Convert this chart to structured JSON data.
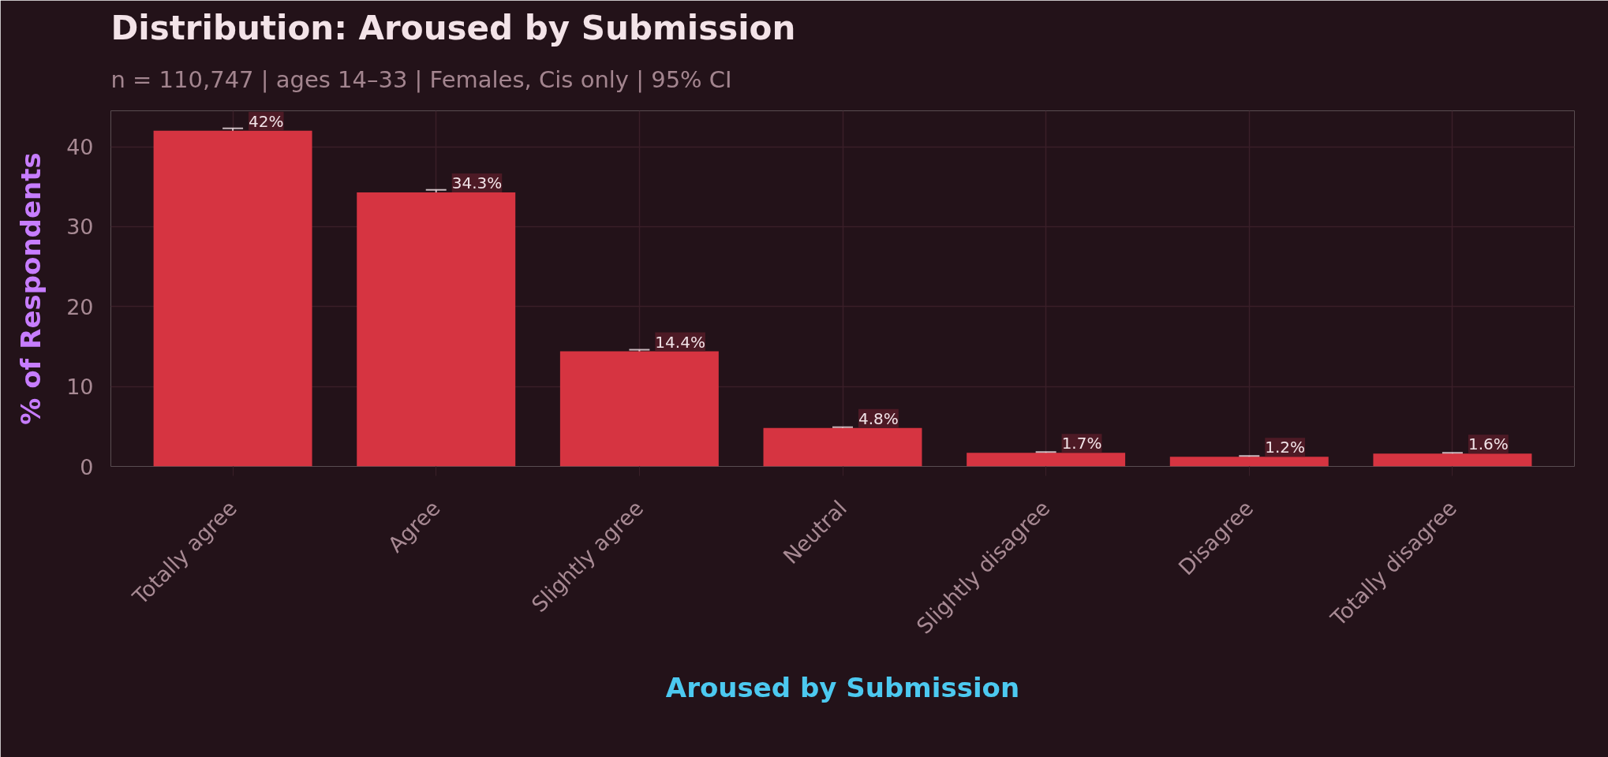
{
  "chart_data": {
    "type": "bar",
    "title": "Distribution: Aroused by Submission",
    "subtitle": "n = 110,747  |  ages 14–33  |  Females, Cis only  |  95% CI",
    "xlabel": "Aroused by Submission",
    "ylabel": "% of Respondents",
    "categories": [
      "Totally agree",
      "Agree",
      "Slightly agree",
      "Neutral",
      "Slightly disagree",
      "Disagree",
      "Totally disagree"
    ],
    "values": [
      42,
      34.3,
      14.4,
      4.8,
      1.7,
      1.2,
      1.6
    ],
    "errors": [
      0.3,
      0.3,
      0.2,
      0.1,
      0.1,
      0.1,
      0.1
    ],
    "value_labels": [
      "42%",
      "34.3%",
      "14.4%",
      "4.8%",
      "1.7%",
      "1.2%",
      "1.6%"
    ],
    "color": "#d63441",
    "ylim": [
      0,
      44.5
    ],
    "yticks": [
      0,
      10,
      20,
      30,
      40
    ],
    "grid": true
  }
}
